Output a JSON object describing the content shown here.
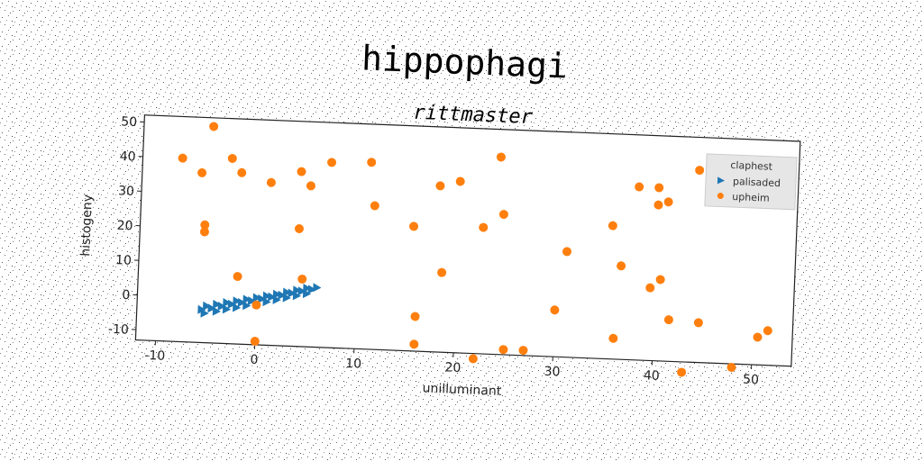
{
  "chart_data": {
    "type": "scatter",
    "title": "hippophagi",
    "subtitle": "rittmaster",
    "xlabel": "unilluminant",
    "ylabel": "histogeny",
    "xlim": [
      -12,
      54
    ],
    "ylim": [
      -13,
      52
    ],
    "x_ticks": [
      -10,
      0,
      10,
      20,
      30,
      40,
      50
    ],
    "y_ticks": [
      -10,
      0,
      10,
      20,
      30,
      40,
      50
    ],
    "grid": false,
    "legend": {
      "title": "claphest",
      "placement": "top-right",
      "entries": [
        "palisaded",
        "upheim"
      ]
    },
    "series": [
      {
        "name": "palisaded",
        "marker": "triangle-right",
        "color": "#1f77b4",
        "points": [
          [
            -5.5,
            -3.5
          ],
          [
            -4.5,
            -3.0
          ],
          [
            -3.5,
            -2.3
          ],
          [
            -2.5,
            -1.6
          ],
          [
            -1.5,
            -1.0
          ],
          [
            -0.5,
            -0.4
          ],
          [
            0.5,
            0.3
          ],
          [
            1.5,
            1.0
          ],
          [
            2.5,
            1.6
          ],
          [
            3.5,
            2.3
          ],
          [
            4.5,
            3.0
          ],
          [
            5.5,
            3.6
          ],
          [
            -5.2,
            -4.5
          ],
          [
            -4.0,
            -3.8
          ],
          [
            -3.0,
            -3.1
          ],
          [
            -2.0,
            -2.5
          ],
          [
            -1.0,
            -1.8
          ],
          [
            0.0,
            -1.2
          ],
          [
            1.0,
            -0.5
          ],
          [
            2.0,
            0.2
          ],
          [
            3.0,
            0.9
          ],
          [
            4.0,
            1.6
          ],
          [
            5.0,
            2.3
          ],
          [
            -5.0,
            -2.4
          ],
          [
            -4.0,
            -1.8
          ],
          [
            -3.0,
            -1.2
          ],
          [
            -2.0,
            -0.6
          ],
          [
            -1.0,
            0.0
          ],
          [
            0.0,
            0.6
          ],
          [
            1.0,
            1.2
          ],
          [
            2.0,
            1.8
          ],
          [
            3.0,
            2.5
          ],
          [
            4.0,
            3.2
          ],
          [
            5.0,
            3.9
          ],
          [
            6.0,
            4.2
          ]
        ]
      },
      {
        "name": "upheim",
        "marker": "circle",
        "color": "#ff7f0e",
        "points": [
          [
            -8.0,
            40.0
          ],
          [
            -6.0,
            36.0
          ],
          [
            -5.0,
            49.5
          ],
          [
            -3.0,
            40.5
          ],
          [
            -2.0,
            36.5
          ],
          [
            1.0,
            34.0
          ],
          [
            -5.5,
            21.0
          ],
          [
            -5.5,
            19.0
          ],
          [
            -2.0,
            6.5
          ],
          [
            4.0,
            37.5
          ],
          [
            5.0,
            33.5
          ],
          [
            7.0,
            40.5
          ],
          [
            11.0,
            41.0
          ],
          [
            11.5,
            28.5
          ],
          [
            4.0,
            21.0
          ],
          [
            4.5,
            6.5
          ],
          [
            0.0,
            -1.5
          ],
          [
            0.0,
            -12.0
          ],
          [
            15.5,
            23.0
          ],
          [
            16.0,
            -3.0
          ],
          [
            16.0,
            -11.0
          ],
          [
            18.0,
            35.0
          ],
          [
            18.5,
            10.0
          ],
          [
            20.0,
            36.5
          ],
          [
            22.0,
            -14.5
          ],
          [
            22.5,
            23.5
          ],
          [
            24.0,
            44.0
          ],
          [
            24.5,
            27.5
          ],
          [
            25.0,
            -11.5
          ],
          [
            27.0,
            -11.5
          ],
          [
            30.0,
            0.5
          ],
          [
            31.0,
            17.5
          ],
          [
            35.5,
            25.5
          ],
          [
            36.0,
            -7.0
          ],
          [
            36.5,
            14.0
          ],
          [
            38.0,
            37.0
          ],
          [
            39.5,
            8.0
          ],
          [
            40.0,
            37.0
          ],
          [
            40.0,
            32.0
          ],
          [
            40.5,
            10.5
          ],
          [
            41.0,
            33.0
          ],
          [
            41.5,
            -1.0
          ],
          [
            43.0,
            -16.0
          ],
          [
            44.0,
            42.5
          ],
          [
            44.5,
            -1.5
          ],
          [
            48.0,
            -14.0
          ],
          [
            50.5,
            -5.0
          ],
          [
            51.5,
            -3.0
          ]
        ]
      }
    ]
  }
}
